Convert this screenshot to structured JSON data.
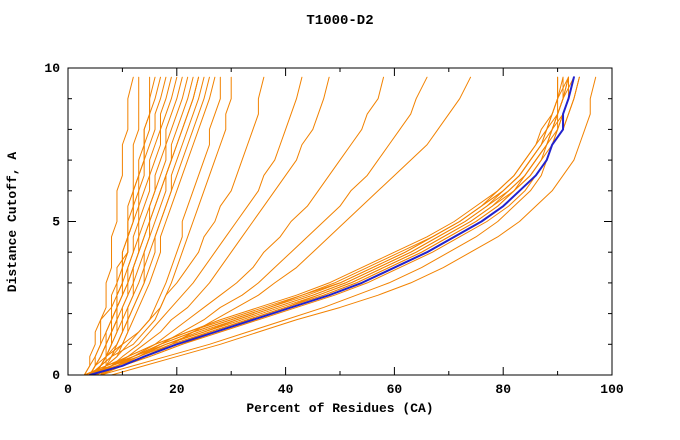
{
  "chart_data": {
    "type": "line",
    "title": "T1000-D2",
    "xlabel": "Percent of Residues (CA)",
    "ylabel": "Distance Cutoff, A",
    "xlim": [
      0,
      100
    ],
    "ylim": [
      0,
      10
    ],
    "x_major_ticks": [
      0,
      20,
      40,
      60,
      80,
      100
    ],
    "y_major_ticks": [
      0,
      5,
      10
    ],
    "x_minor_step": 10,
    "y_minor_step": 1,
    "grid": false,
    "legend_position": "none",
    "colors": {
      "model": "#f28200",
      "highlight": "#2222cc"
    },
    "y_grid": [
      0,
      0.3,
      0.6,
      1.0,
      1.4,
      1.8,
      2.2,
      2.6,
      3.0,
      3.5,
      4.0,
      4.5,
      5.0,
      5.5,
      6.0,
      6.5,
      7.0,
      7.5,
      8.0,
      8.5,
      9.0,
      9.7
    ],
    "series": [
      {
        "name": "model-01",
        "color": "model",
        "x": [
          4,
          5,
          5,
          6,
          6,
          6,
          7,
          7,
          7,
          8,
          8,
          8,
          9,
          9,
          9,
          10,
          10,
          10,
          11,
          11,
          11,
          12
        ]
      },
      {
        "name": "model-02",
        "color": "model",
        "x": [
          6,
          7,
          7,
          8,
          8,
          9,
          9,
          9,
          10,
          10,
          10,
          11,
          11,
          11,
          12,
          12,
          12,
          12,
          13,
          13,
          13,
          13
        ]
      },
      {
        "name": "model-03",
        "color": "model",
        "x": [
          3,
          4,
          4,
          5,
          5,
          6,
          8,
          8,
          9,
          9,
          11,
          11,
          12,
          12,
          12,
          13,
          14,
          14,
          14,
          15,
          15,
          15
        ]
      },
      {
        "name": "model-04",
        "color": "model",
        "x": [
          4,
          5,
          6,
          7,
          7,
          8,
          8,
          9,
          9,
          10,
          10,
          11,
          11,
          12,
          12,
          13,
          13,
          14,
          14,
          15,
          15,
          16
        ]
      },
      {
        "name": "model-05",
        "color": "model",
        "x": [
          5,
          6,
          7,
          7,
          8,
          8,
          9,
          9,
          10,
          10,
          11,
          11,
          12,
          12,
          13,
          13,
          14,
          14,
          15,
          15,
          16,
          17
        ]
      },
      {
        "name": "model-06",
        "color": "model",
        "x": [
          4,
          5,
          6,
          7,
          8,
          8,
          9,
          9,
          10,
          10,
          11,
          11,
          12,
          13,
          13,
          14,
          14,
          15,
          16,
          16,
          17,
          18
        ]
      },
      {
        "name": "model-07",
        "color": "model",
        "x": [
          5,
          6,
          7,
          8,
          8,
          9,
          9,
          10,
          10,
          11,
          12,
          12,
          13,
          13,
          14,
          15,
          15,
          16,
          17,
          17,
          18,
          19
        ]
      },
      {
        "name": "model-08",
        "color": "model",
        "x": [
          4,
          5,
          6,
          7,
          8,
          9,
          9,
          10,
          11,
          11,
          12,
          13,
          13,
          14,
          15,
          15,
          16,
          17,
          17,
          18,
          19,
          20
        ]
      },
      {
        "name": "model-09",
        "color": "model",
        "x": [
          5,
          6,
          7,
          8,
          9,
          9,
          10,
          11,
          11,
          12,
          13,
          13,
          14,
          15,
          16,
          16,
          17,
          18,
          18,
          19,
          20,
          21
        ]
      },
      {
        "name": "model-10",
        "color": "model",
        "x": [
          4,
          6,
          7,
          8,
          9,
          10,
          10,
          11,
          12,
          12,
          13,
          14,
          15,
          15,
          16,
          17,
          18,
          18,
          19,
          20,
          21,
          22
        ]
      },
      {
        "name": "model-11",
        "color": "model",
        "x": [
          5,
          6,
          7,
          9,
          10,
          10,
          11,
          12,
          12,
          13,
          14,
          15,
          15,
          16,
          17,
          18,
          19,
          19,
          20,
          21,
          22,
          23
        ]
      },
      {
        "name": "model-12",
        "color": "model",
        "x": [
          4,
          6,
          8,
          9,
          10,
          11,
          11,
          12,
          13,
          14,
          14,
          15,
          16,
          17,
          18,
          18,
          19,
          20,
          21,
          22,
          23,
          24
        ]
      },
      {
        "name": "model-13",
        "color": "model",
        "x": [
          5,
          7,
          8,
          10,
          11,
          11,
          12,
          13,
          14,
          14,
          15,
          16,
          17,
          18,
          19,
          19,
          20,
          21,
          22,
          23,
          24,
          25
        ]
      },
      {
        "name": "model-14",
        "color": "model",
        "x": [
          4,
          6,
          8,
          9,
          10,
          11,
          12,
          13,
          14,
          15,
          16,
          16,
          17,
          18,
          19,
          20,
          21,
          22,
          23,
          24,
          25,
          26
        ]
      },
      {
        "name": "model-15",
        "color": "model",
        "x": [
          5,
          7,
          9,
          10,
          11,
          12,
          13,
          14,
          15,
          16,
          17,
          17,
          18,
          19,
          20,
          21,
          22,
          23,
          24,
          25,
          26,
          27
        ]
      },
      {
        "name": "model-16",
        "color": "model",
        "x": [
          4,
          5,
          7,
          10,
          13,
          15,
          16,
          17,
          18,
          19,
          20,
          21,
          21,
          22,
          23,
          24,
          25,
          26,
          26,
          27,
          28,
          28
        ]
      },
      {
        "name": "model-17",
        "color": "model",
        "x": [
          5,
          6,
          8,
          12,
          14,
          16,
          17,
          18,
          19,
          20,
          21,
          22,
          23,
          24,
          25,
          26,
          27,
          28,
          29,
          29,
          30,
          30
        ]
      },
      {
        "name": "model-18",
        "color": "model",
        "x": [
          3,
          4,
          5,
          6,
          7,
          8,
          9,
          10,
          11,
          12,
          13,
          14,
          15,
          16,
          17,
          18,
          19,
          20,
          21,
          22,
          23,
          24
        ]
      },
      {
        "name": "model-19",
        "color": "model",
        "x": [
          5,
          7,
          9,
          11,
          13,
          15,
          17,
          18,
          20,
          22,
          24,
          25,
          27,
          28,
          30,
          31,
          32,
          33,
          34,
          35,
          35,
          36
        ]
      },
      {
        "name": "model-20",
        "color": "model",
        "x": [
          6,
          8,
          10,
          13,
          15,
          17,
          19,
          21,
          23,
          25,
          27,
          29,
          31,
          33,
          35,
          36,
          38,
          39,
          40,
          41,
          42,
          43
        ]
      },
      {
        "name": "model-21",
        "color": "model",
        "x": [
          5,
          8,
          11,
          14,
          17,
          19,
          22,
          24,
          26,
          28,
          30,
          32,
          34,
          36,
          38,
          40,
          42,
          43,
          45,
          46,
          47,
          48
        ]
      },
      {
        "name": "model-22",
        "color": "model",
        "x": [
          6,
          9,
          12,
          16,
          19,
          22,
          25,
          28,
          31,
          34,
          36,
          39,
          41,
          44,
          46,
          48,
          50,
          52,
          54,
          55,
          57,
          58
        ]
      },
      {
        "name": "model-23",
        "color": "model",
        "x": [
          5,
          9,
          13,
          17,
          21,
          25,
          28,
          32,
          35,
          38,
          41,
          44,
          47,
          50,
          52,
          55,
          57,
          59,
          61,
          63,
          64,
          66
        ]
      },
      {
        "name": "model-24",
        "color": "model",
        "x": [
          6,
          10,
          14,
          19,
          23,
          27,
          31,
          35,
          38,
          42,
          45,
          48,
          51,
          54,
          57,
          60,
          63,
          66,
          68,
          70,
          72,
          74
        ]
      },
      {
        "name": "model-25",
        "color": "model",
        "x": [
          3,
          8,
          12,
          17,
          23,
          30,
          37,
          44,
          50,
          56,
          62,
          67,
          72,
          76,
          79,
          82,
          84,
          86,
          88,
          89,
          90,
          91
        ]
      },
      {
        "name": "model-26",
        "color": "model",
        "x": [
          4,
          9,
          13,
          18,
          25,
          31,
          38,
          45,
          51,
          57,
          63,
          68,
          73,
          77,
          80,
          83,
          85,
          87,
          88,
          89,
          90,
          92
        ]
      },
      {
        "name": "model-27",
        "color": "model",
        "x": [
          3,
          8,
          11,
          16,
          22,
          28,
          35,
          42,
          48,
          54,
          60,
          66,
          71,
          75,
          79,
          82,
          84,
          86,
          87,
          89,
          90,
          90
        ]
      },
      {
        "name": "model-28",
        "color": "model",
        "x": [
          4,
          9,
          13,
          19,
          26,
          33,
          40,
          46,
          52,
          58,
          64,
          69,
          74,
          78,
          81,
          84,
          86,
          88,
          89,
          90,
          91,
          92
        ]
      },
      {
        "name": "model-29",
        "color": "model",
        "x": [
          5,
          10,
          15,
          21,
          28,
          35,
          42,
          49,
          55,
          61,
          67,
          72,
          77,
          81,
          84,
          86,
          88,
          89,
          91,
          92,
          93,
          94
        ]
      },
      {
        "name": "model-30",
        "color": "model",
        "x": [
          3,
          7,
          11,
          16,
          22,
          29,
          36,
          43,
          49,
          55,
          61,
          67,
          72,
          76,
          80,
          83,
          85,
          87,
          88,
          90,
          91,
          92
        ]
      },
      {
        "name": "model-31",
        "color": "model",
        "x": [
          4,
          8,
          12,
          18,
          24,
          31,
          38,
          45,
          51,
          57,
          63,
          68,
          73,
          77,
          81,
          84,
          86,
          88,
          89,
          90,
          91,
          93
        ]
      },
      {
        "name": "model-32",
        "color": "model",
        "x": [
          3,
          9,
          14,
          20,
          26,
          33,
          40,
          47,
          53,
          59,
          65,
          70,
          75,
          79,
          82,
          85,
          87,
          88,
          90,
          91,
          92,
          93
        ]
      },
      {
        "name": "model-33",
        "color": "model",
        "x": [
          4,
          8,
          13,
          18,
          25,
          32,
          39,
          46,
          52,
          58,
          64,
          69,
          74,
          78,
          82,
          84,
          86,
          88,
          89,
          91,
          92,
          92
        ]
      },
      {
        "name": "model-34",
        "color": "model",
        "x": [
          5,
          9,
          14,
          19,
          26,
          33,
          40,
          47,
          53,
          59,
          65,
          70,
          75,
          79,
          82,
          85,
          87,
          89,
          90,
          91,
          92,
          93
        ]
      },
      {
        "name": "model-35",
        "color": "model",
        "x": [
          3,
          7,
          12,
          17,
          23,
          30,
          37,
          43,
          50,
          56,
          62,
          67,
          72,
          76,
          80,
          83,
          85,
          87,
          89,
          90,
          91,
          91
        ]
      },
      {
        "name": "model-36",
        "color": "model",
        "x": [
          4,
          10,
          15,
          21,
          27,
          34,
          41,
          48,
          54,
          60,
          66,
          71,
          76,
          80,
          83,
          86,
          88,
          89,
          91,
          92,
          93,
          94
        ]
      },
      {
        "name": "model-37",
        "color": "model",
        "x": [
          8,
          14,
          20,
          28,
          35,
          42,
          50,
          57,
          63,
          69,
          74,
          79,
          83,
          86,
          89,
          91,
          93,
          94,
          95,
          96,
          96,
          97
        ]
      },
      {
        "name": "model-38",
        "color": "model",
        "x": [
          6,
          12,
          18,
          26,
          33,
          40,
          47,
          53,
          59,
          65,
          70,
          75,
          79,
          82,
          85,
          87,
          88,
          89,
          90,
          90,
          90,
          90
        ]
      },
      {
        "name": "highlighted-model",
        "color": "highlight",
        "width": 2,
        "x": [
          4,
          10,
          14,
          20,
          27,
          34,
          41,
          48,
          54,
          60,
          66,
          71,
          76,
          80,
          83,
          86,
          88,
          89,
          91,
          91,
          92,
          93
        ]
      }
    ]
  }
}
